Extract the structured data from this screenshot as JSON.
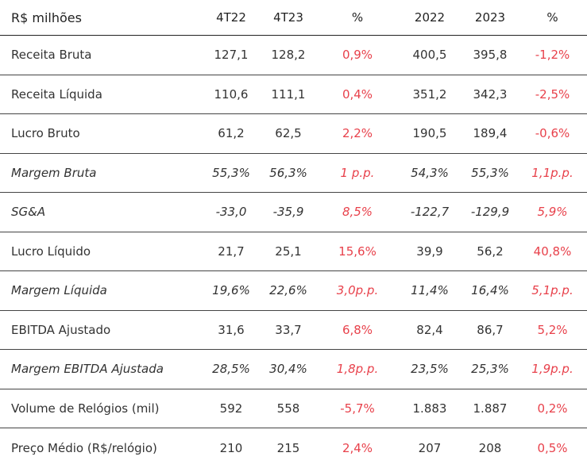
{
  "header": {
    "label": "R$ milhões",
    "cols": [
      "4T22",
      "4T23",
      "%",
      "2022",
      "2023",
      "%"
    ]
  },
  "accent_color": "#e8414b",
  "rows": [
    {
      "label": "Receita Bruta",
      "italic": false,
      "values": [
        "127,1",
        "128,2",
        "0,9%",
        "400,5",
        "395,8",
        "-1,2%"
      ]
    },
    {
      "label": "Receita Líquida",
      "italic": false,
      "values": [
        "110,6",
        "111,1",
        "0,4%",
        "351,2",
        "342,3",
        "-2,5%"
      ]
    },
    {
      "label": "Lucro Bruto",
      "italic": false,
      "values": [
        "61,2",
        "62,5",
        "2,2%",
        "190,5",
        "189,4",
        "-0,6%"
      ]
    },
    {
      "label": "Margem Bruta",
      "italic": true,
      "values": [
        "55,3%",
        "56,3%",
        "1 p.p.",
        "54,3%",
        "55,3%",
        "1,1p.p."
      ]
    },
    {
      "label": "SG&A",
      "italic": true,
      "values": [
        "-33,0",
        "-35,9",
        "8,5%",
        "-122,7",
        "-129,9",
        "5,9%"
      ]
    },
    {
      "label": "Lucro Líquido",
      "italic": false,
      "values": [
        "21,7",
        "25,1",
        "15,6%",
        "39,9",
        "56,2",
        "40,8%"
      ]
    },
    {
      "label": "Margem Líquida",
      "italic": true,
      "values": [
        "19,6%",
        "22,6%",
        "3,0p.p.",
        "11,4%",
        "16,4%",
        "5,1p.p."
      ]
    },
    {
      "label": "EBITDA Ajustado",
      "italic": false,
      "values": [
        "31,6",
        "33,7",
        "6,8%",
        "82,4",
        "86,7",
        "5,2%"
      ]
    },
    {
      "label": "Margem EBITDA Ajustada",
      "italic": true,
      "values": [
        "28,5%",
        "30,4%",
        "1,8p.p.",
        "23,5%",
        "25,3%",
        "1,9p.p."
      ]
    },
    {
      "label": "Volume de Relógios (mil)",
      "italic": false,
      "values": [
        "592",
        "558",
        "-5,7%",
        "1.883",
        "1.887",
        "0,2%"
      ]
    },
    {
      "label": "Preço Médio (R$/relógio)",
      "italic": false,
      "values": [
        "210",
        "215",
        "2,4%",
        "207",
        "208",
        "0,5%"
      ]
    }
  ]
}
